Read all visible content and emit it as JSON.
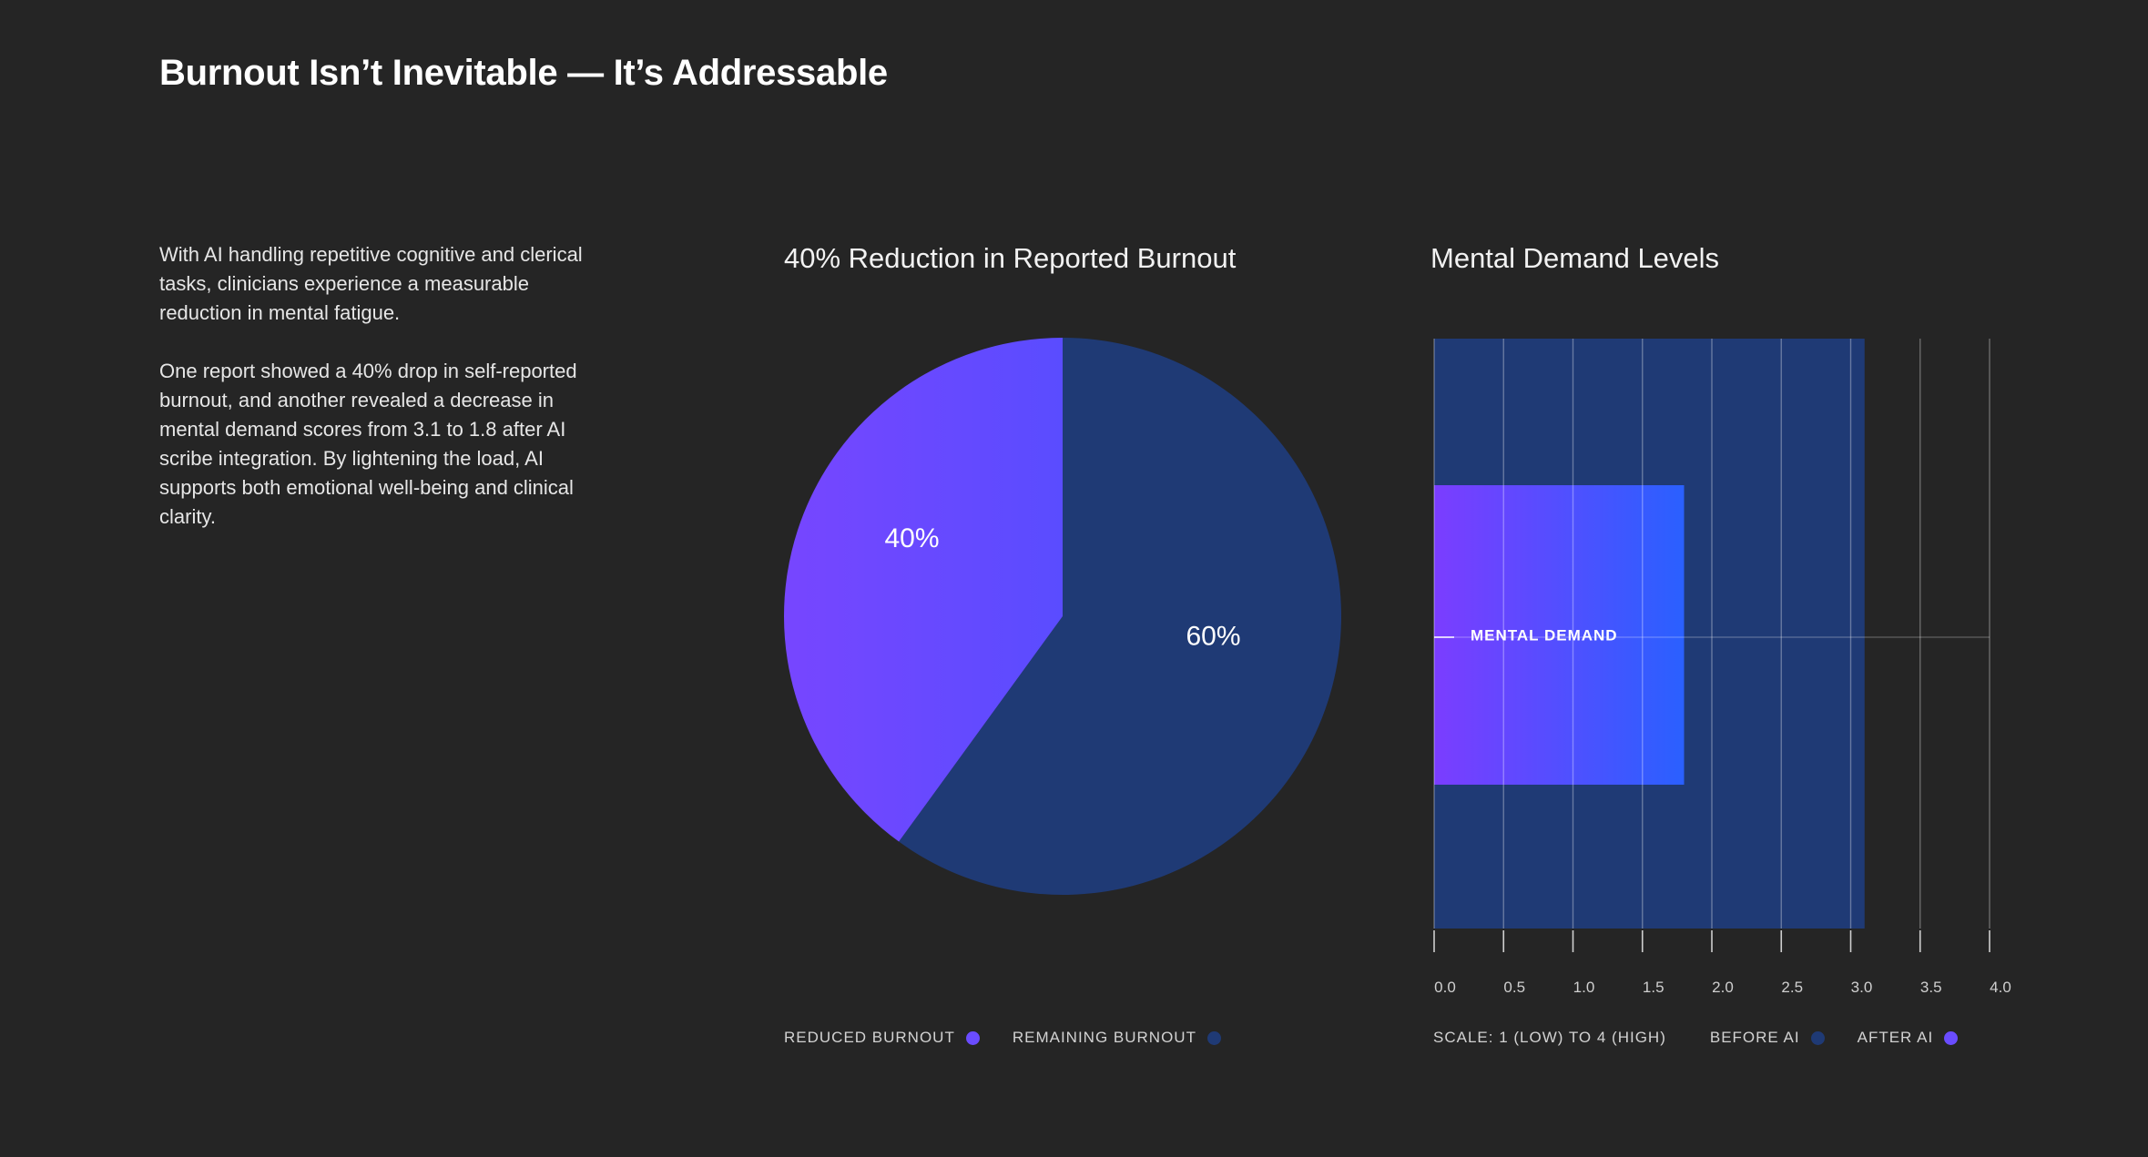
{
  "page": {
    "title": "Burnout Isn’t Inevitable — It’s Addressable",
    "paragraphs": [
      "With AI handling repetitive cognitive and clerical tasks, clinicians experience a measurable reduction in mental fatigue.",
      "One report showed a 40% drop in self-reported burnout, and another revealed a decrease in mental demand scores from 3.1 to 1.8 after AI scribe integration. By lightening the load, AI supports both emotional well-being and clinical clarity."
    ]
  },
  "colors": {
    "background": "#252525",
    "reduced": "#7746ff",
    "remaining": "#1f3a75",
    "after_start": "#7b3dff",
    "after_end": "#2a60ff"
  },
  "chart_data": [
    {
      "type": "pie",
      "title": "40% Reduction in Reported Burnout",
      "slices": [
        {
          "name": "REDUCED BURNOUT",
          "value": 40,
          "label": "40%"
        },
        {
          "name": "REMAINING BURNOUT",
          "value": 60,
          "label": "60%"
        }
      ],
      "legend": [
        {
          "label": "REDUCED BURNOUT",
          "color": "#6a4cff"
        },
        {
          "label": "REMAINING BURNOUT",
          "color": "#1f3a75"
        }
      ]
    },
    {
      "type": "bar",
      "orientation": "horizontal",
      "title": "Mental Demand Levels",
      "categories": [
        "MENTAL DEMAND"
      ],
      "series": [
        {
          "name": "BEFORE AI",
          "values": [
            3.1
          ]
        },
        {
          "name": "AFTER AI",
          "values": [
            1.8
          ]
        }
      ],
      "xlim": [
        0,
        4
      ],
      "ticks": [
        "0.0",
        "0.5",
        "1.0",
        "1.5",
        "2.0",
        "2.5",
        "3.0",
        "3.5",
        "4.0"
      ],
      "grid": true,
      "scale_note": "SCALE: 1 (LOW) TO 4 (HIGH)",
      "legend": [
        {
          "label": "BEFORE AI",
          "color": "#1f3a75"
        },
        {
          "label": "AFTER AI",
          "color": "#6a4cff"
        }
      ]
    }
  ]
}
